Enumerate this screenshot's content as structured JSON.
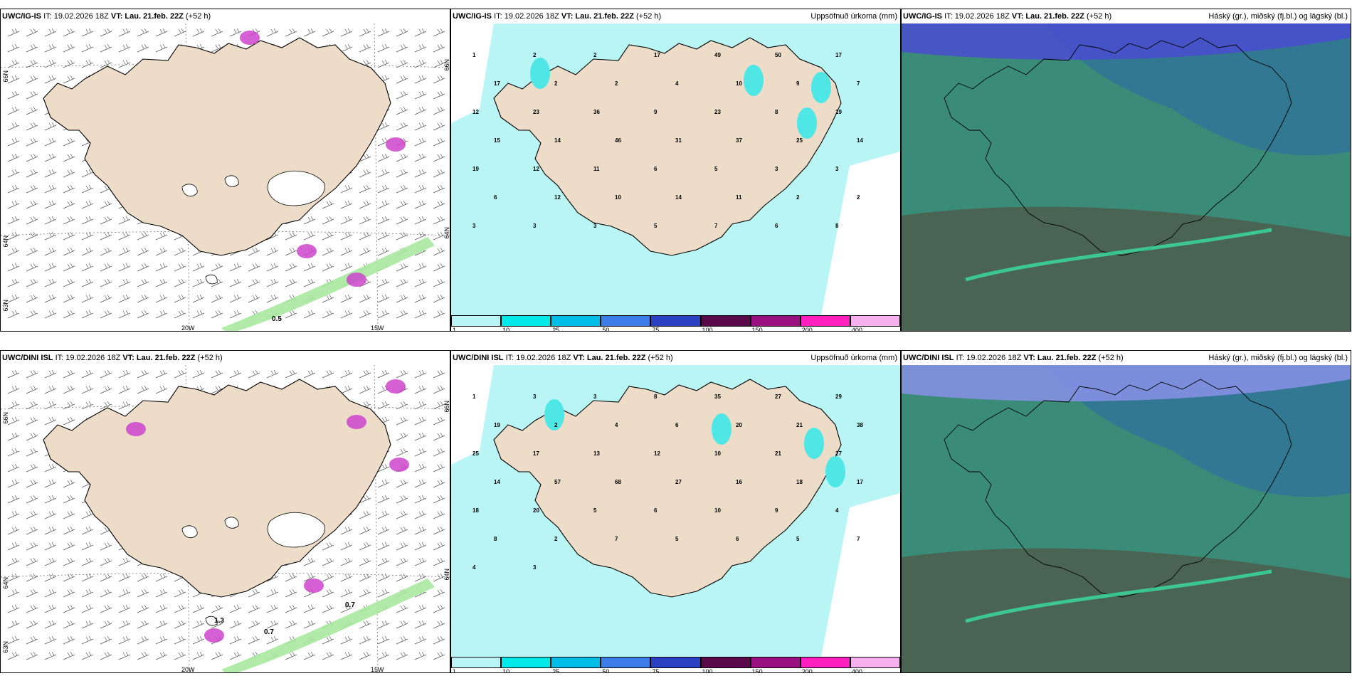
{
  "colors": {
    "land": "#ecdcc8",
    "snow": "#ffffff",
    "precip_light": "#b9f5f5",
    "precip_mid": "#4fe6e6",
    "cloud_low": "#3a8c78",
    "cloud_mid": "#2f6f9c",
    "cloud_high": "#4a4ccf",
    "wind_green": "#a8e8a0",
    "magenta": "#cc44cc"
  },
  "rows": [
    {
      "panels": [
        {
          "title_model": "UWC/IG-IS",
          "title_it": "IT: 19.02.2026 18Z",
          "title_vt_label": "VT:",
          "title_vt": "Lau. 21.feb. 22Z",
          "title_lead": "(+52 h)",
          "right_label": "",
          "grid_labels": {
            "lon1": "20W",
            "lon2": "15W",
            "lat1": "66N",
            "lat2": "64N",
            "lat3": "63N",
            "lat1r": "66N",
            "lat2r": "64N"
          },
          "value_labels": [
            "0.5"
          ]
        },
        {
          "title_model": "UWC/IG-IS",
          "title_it": "IT: 19.02.2026 18Z",
          "title_vt_label": "VT:",
          "title_vt": "Lau. 21.feb. 22Z",
          "title_lead": "(+52 h)",
          "right_label": "Uppsöfnuð úrkoma (mm)",
          "numbers": [
            "1",
            "2",
            "2",
            "17",
            "49",
            "50",
            "17",
            "17",
            "2",
            "2",
            "4",
            "10",
            "9",
            "7",
            "12",
            "23",
            "36",
            "9",
            "23",
            "8",
            "19",
            "15",
            "14",
            "46",
            "31",
            "37",
            "25",
            "14",
            "19",
            "12",
            "11",
            "6",
            "5",
            "3",
            "3",
            "6",
            "12",
            "10",
            "14",
            "11",
            "2",
            "2",
            "3",
            "3",
            "3",
            "5",
            "7",
            "6",
            "8"
          ]
        },
        {
          "title_model": "UWC/IG-IS",
          "title_it": "IT: 19.02.2026 18Z",
          "title_vt_label": "VT:",
          "title_vt": "Lau. 21.feb. 22Z",
          "title_lead": "(+52 h)",
          "right_label": "Háský (gr.), miðský (fj.bl.) og lágský (bl.)"
        }
      ]
    },
    {
      "panels": [
        {
          "title_model": "UWC/DINI ISL",
          "title_it": "IT: 19.02.2026 18Z",
          "title_vt_label": "VT:",
          "title_vt": "Lau. 21.feb. 22Z",
          "title_lead": "(+52 h)",
          "right_label": "",
          "grid_labels": {
            "lon1": "20W",
            "lon2": "15W",
            "lat1": "66N",
            "lat2": "64N",
            "lat3": "63N",
            "lat1r": "66N",
            "lat2r": "64N"
          },
          "value_labels": [
            "0.7",
            "0.7",
            "1.3"
          ]
        },
        {
          "title_model": "UWC/DINI ISL",
          "title_it": "IT: 19.02.2026 18Z",
          "title_vt_label": "VT:",
          "title_vt": "Lau. 21.feb. 22Z",
          "title_lead": "(+52 h)",
          "right_label": "Uppsöfnuð úrkoma (mm)",
          "numbers": [
            "1",
            "3",
            "3",
            "8",
            "35",
            "27",
            "29",
            "19",
            "2",
            "4",
            "6",
            "20",
            "21",
            "38",
            "25",
            "17",
            "13",
            "12",
            "10",
            "21",
            "27",
            "14",
            "57",
            "68",
            "27",
            "16",
            "18",
            "17",
            "18",
            "20",
            "5",
            "6",
            "10",
            "9",
            "4",
            "8",
            "2",
            "7",
            "5",
            "6",
            "5",
            "7",
            "4",
            "3"
          ]
        },
        {
          "title_model": "UWC/DINI ISL",
          "title_it": "IT: 19.02.2026 18Z",
          "title_vt_label": "VT:",
          "title_vt": "Lau. 21.feb. 22Z",
          "title_lead": "(+52 h)",
          "right_label": "Háský (gr.), miðský (fj.bl.) og lágský (bl.)"
        }
      ]
    }
  ],
  "colorbar": {
    "ticks": [
      "1",
      "10",
      "25",
      "50",
      "75",
      "100",
      "150",
      "200",
      "400"
    ],
    "colors": [
      "#b9f5f5",
      "#00e8e8",
      "#00bde8",
      "#3c7de8",
      "#2b3fc2",
      "#5a0a4a",
      "#9a1080",
      "#ff1fbf",
      "#f7b0f0"
    ]
  }
}
